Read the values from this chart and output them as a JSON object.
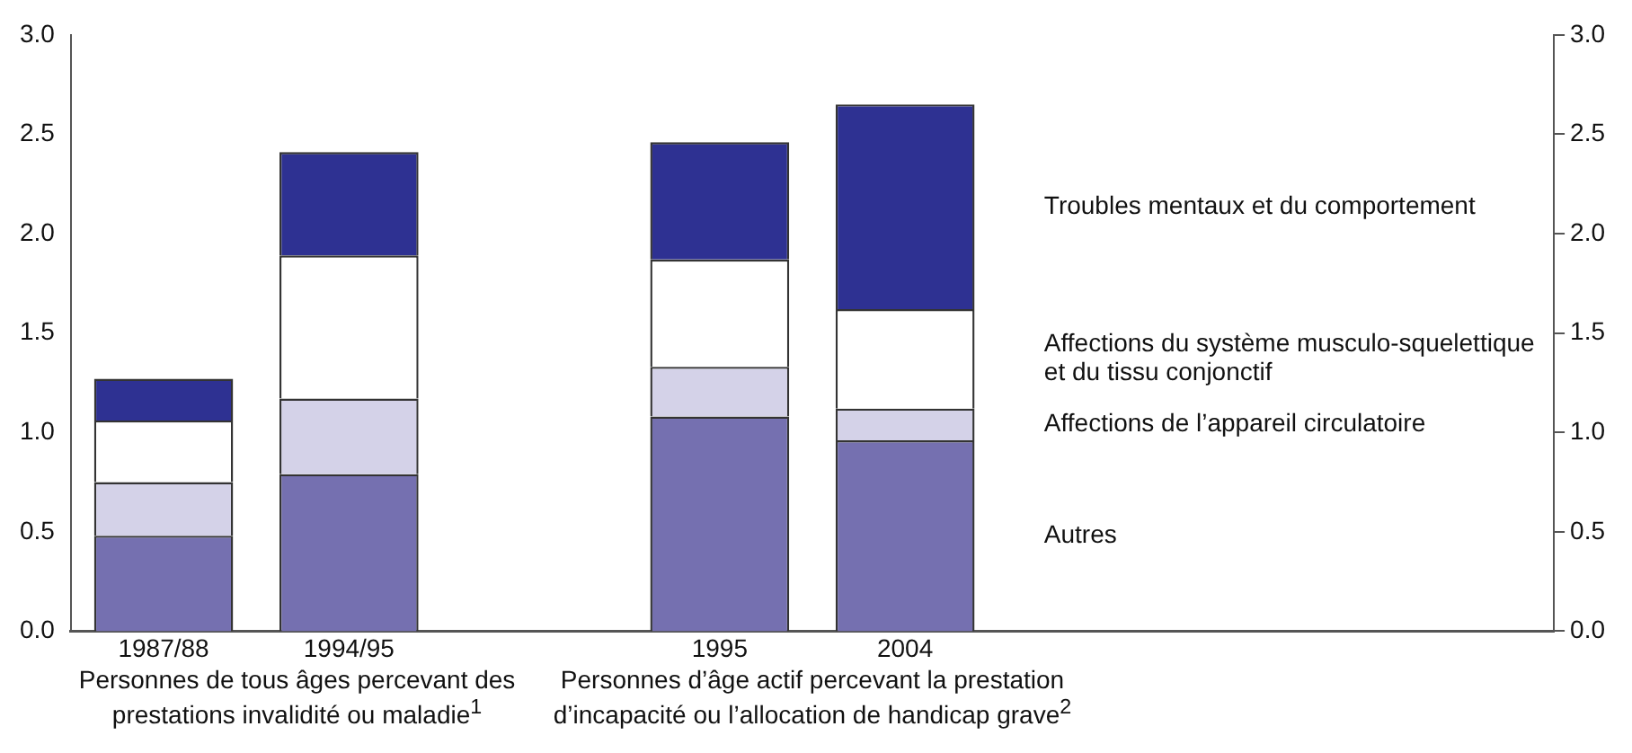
{
  "chart_data": {
    "type": "bar",
    "stacked": true,
    "categories": [
      "1987/88",
      "1994/95",
      null,
      "1995",
      "2004",
      null,
      null,
      null
    ],
    "series": [
      {
        "name": "Autres",
        "color": "#7570b0",
        "values": [
          0.48,
          0.79,
          null,
          1.08,
          0.96,
          null,
          null,
          null
        ]
      },
      {
        "name": "Affections de l’appareil circulatoire",
        "color": "#d4d2e8",
        "values": [
          0.27,
          0.38,
          null,
          0.25,
          0.16,
          null,
          null,
          null
        ]
      },
      {
        "name": "Affections du système musculo-squelettique et du tissu conjonctif",
        "color": "#ffffff",
        "values": [
          0.31,
          0.72,
          null,
          0.54,
          0.5,
          null,
          null,
          null
        ]
      },
      {
        "name": "Troubles mentaux et du comportement",
        "color": "#2e3192",
        "values": [
          0.21,
          0.52,
          null,
          0.59,
          1.03,
          null,
          null,
          null
        ]
      }
    ],
    "ylim": [
      0,
      3
    ],
    "yticks": [
      {
        "value": 0,
        "label": "0.0"
      },
      0.5,
      {
        "value": 1,
        "label": "1.0"
      },
      1.5,
      {
        "value": 2,
        "label": "2.0"
      },
      2.5,
      {
        "value": 3,
        "label": "3.0"
      }
    ],
    "y2lim": [
      0,
      3
    ],
    "y2ticks": [
      {
        "value": 0,
        "label": "0.0"
      },
      0.5,
      {
        "value": 1,
        "label": "1.0"
      },
      1.5,
      {
        "value": 2,
        "label": "2.0"
      },
      2.5,
      {
        "value": 3,
        "label": "3.0"
      }
    ],
    "grid": false,
    "legend": false,
    "annotations": [
      "Personnes de tous âges percevant des prestations invalidité ou maladie$^{1}$",
      "Personnes d’âge actif percevant la prestation d’incapacité ou l’allocation de handicap grave$^{2}$"
    ]
  }
}
